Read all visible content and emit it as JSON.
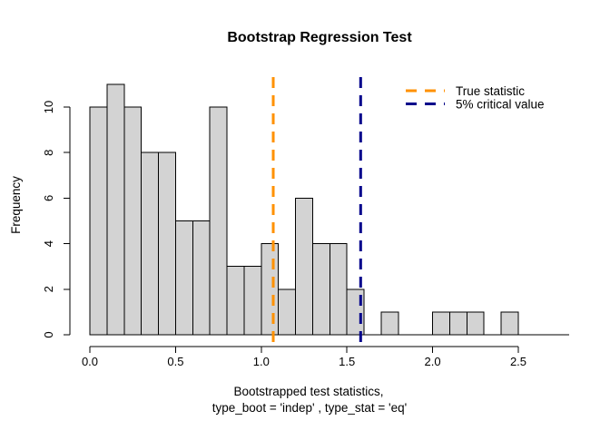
{
  "chart_data": {
    "type": "bar",
    "subtype": "histogram",
    "title": "Bootstrap Regression Test",
    "ylabel": "Frequency",
    "xlabel_line1": "Bootstrapped test statistics,",
    "xlabel_line2": "type_boot = 'indep' , type_stat = 'eq'",
    "bin_start": 0.0,
    "bin_width": 0.1,
    "counts": [
      10,
      11,
      10,
      8,
      8,
      5,
      5,
      10,
      3,
      3,
      4,
      2,
      6,
      4,
      4,
      2,
      0,
      1,
      0,
      0,
      1,
      1,
      1,
      0,
      1
    ],
    "x_ticks": [
      0.0,
      0.5,
      1.0,
      1.5,
      2.0,
      2.5
    ],
    "x_tick_labels": [
      "0.0",
      "0.5",
      "1.0",
      "1.5",
      "2.0",
      "2.5"
    ],
    "y_ticks": [
      0,
      2,
      4,
      6,
      8,
      10
    ],
    "y_tick_labels": [
      "0",
      "2",
      "4",
      "6",
      "8",
      "10"
    ],
    "xlim": [
      0,
      2.8
    ],
    "ylim": [
      0,
      11
    ],
    "grid": false,
    "bar_fill": "#d3d3d3",
    "bar_border": "#000000",
    "vlines": [
      {
        "value": 1.07,
        "color": "#ff9100",
        "style": "dashed",
        "label": "True statistic"
      },
      {
        "value": 1.58,
        "color": "#00008b",
        "style": "dashed",
        "label": "5% critical value"
      }
    ],
    "legend": {
      "position": "top-right",
      "entries": [
        {
          "label": "True statistic",
          "color": "#ff9100",
          "line_style": "dashed"
        },
        {
          "label": "5% critical value",
          "color": "#00008b",
          "line_style": "dashed"
        }
      ]
    }
  }
}
